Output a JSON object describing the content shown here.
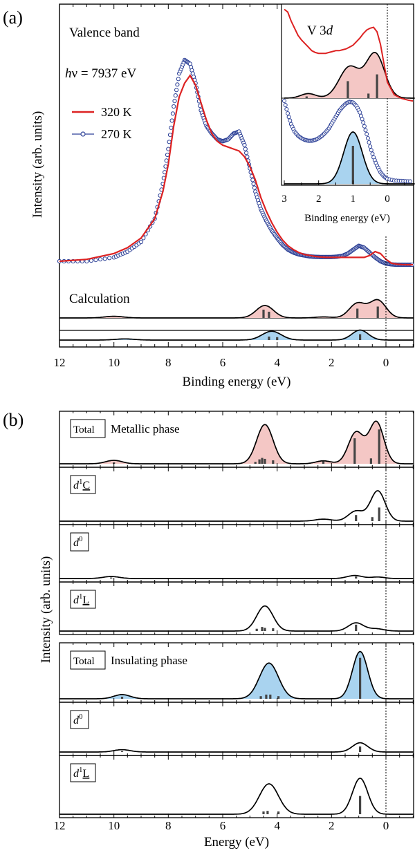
{
  "chart_data": [
    {
      "panel": "a",
      "panel_label": "(a)",
      "type": "line",
      "title": "Valence band",
      "photon_energy_html": "hν = 7937 eV",
      "photon_energy_parts": [
        "h",
        "ν = 7937 eV"
      ],
      "xlabel": "Binding energy (eV)",
      "ylabel": "Intensity (arb. units)",
      "xlim": [
        12,
        -1
      ],
      "xticks": [
        12,
        10,
        8,
        6,
        4,
        2,
        0
      ],
      "legend_position": "upper-left",
      "colors": {
        "T320": "#dd2222",
        "T270": "#2b3f96",
        "metallic_fill": "#f4c7c5",
        "insulating_fill": "#a9d3ef"
      },
      "series": [
        {
          "name": "320 K",
          "style": "red-line",
          "x": [
            12,
            11,
            10,
            9.5,
            9,
            8.5,
            8.2,
            8.0,
            7.8,
            7.6,
            7.4,
            7.2,
            7.0,
            6.8,
            6.6,
            6.4,
            6.2,
            6.0,
            5.8,
            5.6,
            5.4,
            5.2,
            5.0,
            4.8,
            4.6,
            4.4,
            4.2,
            4.0,
            3.8,
            3.6,
            3.4,
            3.2,
            3.0,
            2.8,
            2.6,
            2.4,
            2.2,
            2.0,
            1.8,
            1.6,
            1.4,
            1.2,
            1.0,
            0.8,
            0.6,
            0.4,
            0.2,
            0.0,
            -0.2,
            -0.4,
            -0.6,
            -0.8,
            -1.0
          ],
          "y": [
            0.0,
            0.01,
            0.04,
            0.07,
            0.12,
            0.22,
            0.36,
            0.5,
            0.7,
            0.85,
            0.92,
            0.96,
            0.91,
            0.82,
            0.73,
            0.66,
            0.62,
            0.6,
            0.59,
            0.58,
            0.57,
            0.54,
            0.49,
            0.42,
            0.33,
            0.26,
            0.2,
            0.15,
            0.11,
            0.08,
            0.06,
            0.045,
            0.035,
            0.03,
            0.025,
            0.022,
            0.02,
            0.02,
            0.02,
            0.02,
            0.02,
            0.02,
            0.02,
            0.02,
            0.03,
            0.05,
            0.04,
            0.01,
            -0.01,
            -0.015,
            -0.017,
            -0.018,
            -0.018
          ]
        },
        {
          "name": "270 K",
          "style": "blue-open-circles",
          "x": [
            12,
            11,
            10,
            9.5,
            9,
            8.5,
            8.2,
            8.0,
            7.8,
            7.6,
            7.4,
            7.2,
            7.0,
            6.8,
            6.6,
            6.4,
            6.2,
            6.0,
            5.8,
            5.6,
            5.4,
            5.2,
            5.0,
            4.8,
            4.6,
            4.4,
            4.2,
            4.0,
            3.8,
            3.6,
            3.4,
            3.2,
            3.0,
            2.8,
            2.6,
            2.4,
            2.2,
            2.0,
            1.8,
            1.6,
            1.4,
            1.2,
            1.0,
            0.8,
            0.6,
            0.4,
            0.2,
            0.0,
            -0.2,
            -0.4,
            -0.6,
            -0.8,
            -1.0
          ],
          "y": [
            0.0,
            0.0,
            0.02,
            0.05,
            0.1,
            0.22,
            0.4,
            0.58,
            0.8,
            0.97,
            1.04,
            1.02,
            0.92,
            0.78,
            0.7,
            0.66,
            0.63,
            0.62,
            0.63,
            0.66,
            0.67,
            0.6,
            0.48,
            0.36,
            0.27,
            0.21,
            0.16,
            0.12,
            0.085,
            0.06,
            0.045,
            0.035,
            0.03,
            0.025,
            0.023,
            0.022,
            0.022,
            0.022,
            0.024,
            0.028,
            0.04,
            0.06,
            0.08,
            0.07,
            0.045,
            0.02,
            0.0,
            -0.012,
            -0.016,
            -0.018,
            -0.018,
            -0.018,
            -0.018
          ]
        }
      ],
      "calculation": {
        "label": "Calculation",
        "metallic": {
          "peaks": [
            {
              "c": 10.0,
              "h": 0.08,
              "w": 0.35
            },
            {
              "c": 4.45,
              "h": 0.6,
              "w": 0.32
            },
            {
              "c": 2.3,
              "h": 0.05,
              "w": 0.3
            },
            {
              "c": 1.05,
              "h": 0.7,
              "w": 0.3
            },
            {
              "c": 0.3,
              "h": 0.85,
              "w": 0.3
            }
          ],
          "sticks": [
            {
              "x": 4.5,
              "h": 0.4
            },
            {
              "x": 4.3,
              "h": 0.3
            },
            {
              "x": 1.05,
              "h": 0.45
            },
            {
              "x": 0.3,
              "h": 0.55
            }
          ]
        },
        "insulating": {
          "peaks": [
            {
              "c": 9.6,
              "h": 0.1,
              "w": 0.35
            },
            {
              "c": 4.2,
              "h": 0.75,
              "w": 0.35
            },
            {
              "c": 0.95,
              "h": 0.85,
              "w": 0.3
            }
          ],
          "sticks": [
            {
              "x": 4.3,
              "h": 0.3
            },
            {
              "x": 4.0,
              "h": 0.25
            },
            {
              "x": 0.95,
              "h": 0.5
            }
          ]
        }
      },
      "inset": {
        "title_html": "V 3d",
        "title_parts": [
          "V 3",
          "d"
        ],
        "xlabel": "Binding energy (eV)",
        "xlim": [
          3,
          -0.8
        ],
        "xticks": [
          3,
          2,
          1,
          0
        ],
        "experiment_320K": {
          "x": [
            3.0,
            2.9,
            2.8,
            2.7,
            2.6,
            2.5,
            2.4,
            2.3,
            2.2,
            2.1,
            2.0,
            1.9,
            1.8,
            1.7,
            1.6,
            1.5,
            1.4,
            1.3,
            1.2,
            1.1,
            1.0,
            0.9,
            0.8,
            0.7,
            0.6,
            0.5,
            0.4,
            0.3,
            0.2,
            0.1,
            0.0,
            -0.2,
            -0.4,
            -0.6,
            -0.8
          ],
          "y": [
            1.05,
            1.02,
            0.92,
            0.84,
            0.76,
            0.71,
            0.67,
            0.63,
            0.59,
            0.57,
            0.56,
            0.56,
            0.56,
            0.57,
            0.58,
            0.59,
            0.59,
            0.6,
            0.61,
            0.63,
            0.65,
            0.69,
            0.73,
            0.78,
            0.82,
            0.84,
            0.85,
            0.8,
            0.66,
            0.45,
            0.24,
            0.1,
            0.06,
            0.04,
            0.03
          ]
        },
        "metallic_calc": {
          "peaks": [
            {
              "c": 2.3,
              "h": 0.08,
              "w": 0.22
            },
            {
              "c": 1.1,
              "h": 0.55,
              "w": 0.3
            },
            {
              "c": 0.35,
              "h": 0.78,
              "w": 0.27
            }
          ],
          "sticks": [
            {
              "x": 2.35,
              "h": 0.03
            },
            {
              "x": 1.15,
              "h": 0.3
            },
            {
              "x": 0.55,
              "h": 0.08
            },
            {
              "x": 0.3,
              "h": 0.42
            }
          ]
        },
        "experiment_270K": {
          "x": [
            3.0,
            2.9,
            2.8,
            2.7,
            2.6,
            2.5,
            2.4,
            2.3,
            2.2,
            2.1,
            2.0,
            1.9,
            1.8,
            1.7,
            1.6,
            1.5,
            1.4,
            1.3,
            1.2,
            1.1,
            1.0,
            0.9,
            0.8,
            0.7,
            0.6,
            0.5,
            0.4,
            0.3,
            0.2,
            0.1,
            0.0,
            -0.2,
            -0.4,
            -0.6,
            -0.8
          ],
          "y": [
            1.0,
            0.85,
            0.72,
            0.63,
            0.58,
            0.55,
            0.53,
            0.52,
            0.52,
            0.53,
            0.55,
            0.58,
            0.62,
            0.67,
            0.74,
            0.81,
            0.88,
            0.93,
            0.97,
            0.99,
            0.98,
            0.94,
            0.86,
            0.74,
            0.6,
            0.45,
            0.32,
            0.22,
            0.14,
            0.09,
            0.06,
            0.04,
            0.035,
            0.03,
            0.03
          ]
        },
        "insulating_calc": {
          "peaks": [
            {
              "c": 1.0,
              "h": 0.75,
              "w": 0.27
            }
          ],
          "sticks": [
            {
              "x": 1.0,
              "h": 0.55
            }
          ]
        }
      }
    },
    {
      "panel": "b",
      "panel_label": "(b)",
      "type": "line",
      "xlabel": "Energy (eV)",
      "ylabel": "Intensity (arb. units)",
      "xlim": [
        12,
        -1
      ],
      "xticks": [
        12,
        10,
        8,
        6,
        4,
        2,
        0
      ],
      "subpanels": [
        {
          "label_html": "Total",
          "label_parts": [
            "Total",
            "",
            ""
          ],
          "phase_label": "Metallic phase",
          "fill": "#f4c7c5",
          "peaks": [
            {
              "c": 10.0,
              "h": 0.07,
              "w": 0.3
            },
            {
              "c": 4.45,
              "h": 0.8,
              "w": 0.3
            },
            {
              "c": 2.3,
              "h": 0.06,
              "w": 0.28
            },
            {
              "c": 1.1,
              "h": 0.64,
              "w": 0.28
            },
            {
              "c": 0.35,
              "h": 0.85,
              "w": 0.27
            }
          ],
          "sticks": [
            {
              "x": 10.0,
              "h": 0.03
            },
            {
              "x": 4.8,
              "h": 0.04
            },
            {
              "x": 4.65,
              "h": 0.09
            },
            {
              "x": 4.55,
              "h": 0.12
            },
            {
              "x": 4.45,
              "h": 0.1
            },
            {
              "x": 4.15,
              "h": 0.07
            },
            {
              "x": 2.3,
              "h": 0.05
            },
            {
              "x": 1.15,
              "h": 0.52
            },
            {
              "x": 0.55,
              "h": 0.11
            },
            {
              "x": 0.25,
              "h": 0.7
            }
          ]
        },
        {
          "label_html": "d1C",
          "label_parts": [
            "d",
            "1",
            "C"
          ],
          "fill": "",
          "peaks": [
            {
              "c": 2.3,
              "h": 0.04,
              "w": 0.3
            },
            {
              "c": 1.1,
              "h": 0.2,
              "w": 0.28
            },
            {
              "c": 0.3,
              "h": 0.6,
              "w": 0.27
            }
          ],
          "sticks": [
            {
              "x": 1.1,
              "h": 0.12
            },
            {
              "x": 0.5,
              "h": 0.08
            },
            {
              "x": 0.25,
              "h": 0.27
            }
          ]
        },
        {
          "label_html": "d0",
          "label_parts": [
            "d",
            "0",
            ""
          ],
          "fill": "",
          "peaks": [
            {
              "c": 10.1,
              "h": 0.04,
              "w": 0.3
            },
            {
              "c": 1.15,
              "h": 0.06,
              "w": 0.28
            },
            {
              "c": 0.3,
              "h": 0.03,
              "w": 0.25
            }
          ],
          "sticks": [
            {
              "x": 10.1,
              "h": 0.02
            },
            {
              "x": 1.1,
              "h": 0.04
            }
          ]
        },
        {
          "label_html": "d1L",
          "label_parts": [
            "d",
            "1",
            "L"
          ],
          "fill": "",
          "peaks": [
            {
              "c": 4.45,
              "h": 0.55,
              "w": 0.3
            },
            {
              "c": 1.1,
              "h": 0.18,
              "w": 0.28
            },
            {
              "c": 0.35,
              "h": 0.05,
              "w": 0.27
            }
          ],
          "sticks": [
            {
              "x": 4.75,
              "h": 0.05
            },
            {
              "x": 4.55,
              "h": 0.09
            },
            {
              "x": 4.45,
              "h": 0.07
            },
            {
              "x": 4.15,
              "h": 0.06
            },
            {
              "x": 1.1,
              "h": 0.14
            }
          ]
        },
        {
          "label_html": "Total",
          "label_parts": [
            "Total",
            "",
            ""
          ],
          "phase_label": "Insulating phase",
          "fill": "#a9d3ef",
          "peaks": [
            {
              "c": 9.7,
              "h": 0.08,
              "w": 0.3
            },
            {
              "c": 4.3,
              "h": 0.68,
              "w": 0.35
            },
            {
              "c": 0.95,
              "h": 0.9,
              "w": 0.28
            }
          ],
          "sticks": [
            {
              "x": 9.7,
              "h": 0.04
            },
            {
              "x": 4.6,
              "h": 0.05
            },
            {
              "x": 4.4,
              "h": 0.08
            },
            {
              "x": 4.25,
              "h": 0.08
            },
            {
              "x": 3.95,
              "h": 0.05
            },
            {
              "x": 0.95,
              "h": 0.78
            }
          ]
        },
        {
          "label_html": "d0",
          "label_parts": [
            "d",
            "0",
            ""
          ],
          "fill": "",
          "peaks": [
            {
              "c": 9.7,
              "h": 0.05,
              "w": 0.3
            },
            {
              "c": 0.95,
              "h": 0.2,
              "w": 0.28
            }
          ],
          "sticks": [
            {
              "x": 9.7,
              "h": 0.02
            },
            {
              "x": 0.95,
              "h": 0.12
            }
          ]
        },
        {
          "label_html": "d1L",
          "label_parts": [
            "d",
            "1",
            "L"
          ],
          "fill": "",
          "peaks": [
            {
              "c": 4.3,
              "h": 0.55,
              "w": 0.35
            },
            {
              "c": 0.95,
              "h": 0.65,
              "w": 0.28
            }
          ],
          "sticks": [
            {
              "x": 4.5,
              "h": 0.05
            },
            {
              "x": 4.35,
              "h": 0.06
            },
            {
              "x": 3.95,
              "h": 0.05
            },
            {
              "x": 0.95,
              "h": 0.33
            }
          ]
        }
      ]
    }
  ]
}
